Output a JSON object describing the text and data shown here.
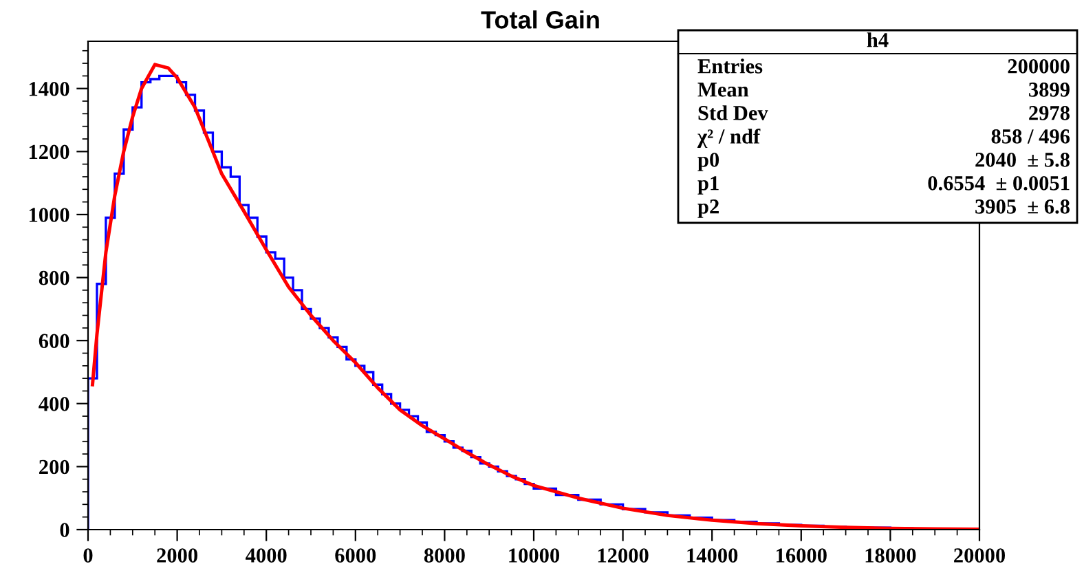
{
  "chart_data": {
    "type": "histogram",
    "title": "Total Gain",
    "bins": [
      0,
      200,
      400,
      600,
      800,
      1000,
      1200,
      1400,
      1600,
      1800,
      2000,
      2200,
      2400,
      2600,
      2800,
      3000,
      3200,
      3400,
      3600,
      3800,
      4000,
      4200,
      4400,
      4600,
      4800,
      5000,
      5200,
      5400,
      5600,
      5800,
      6000,
      6200,
      6400,
      6600,
      6800,
      7000,
      7200,
      7400,
      7600,
      7800,
      8000,
      8200,
      8400,
      8600,
      8800,
      9000,
      9200,
      9400,
      9600,
      9800,
      10000,
      10500,
      11000,
      11500,
      12000,
      12500,
      13000,
      13500,
      14000,
      14500,
      15000,
      15500,
      16000,
      16500,
      17000,
      17500,
      18000,
      18500,
      19000,
      19500,
      20000
    ],
    "values": [
      480,
      780,
      990,
      1130,
      1270,
      1340,
      1420,
      1430,
      1440,
      1440,
      1420,
      1380,
      1330,
      1260,
      1200,
      1150,
      1120,
      1030,
      990,
      930,
      880,
      860,
      800,
      760,
      700,
      670,
      640,
      610,
      580,
      540,
      520,
      500,
      460,
      430,
      400,
      380,
      360,
      340,
      310,
      300,
      280,
      260,
      250,
      230,
      210,
      200,
      185,
      170,
      160,
      145,
      130,
      110,
      95,
      80,
      65,
      55,
      45,
      38,
      30,
      25,
      20,
      15,
      12,
      9,
      7,
      6,
      4,
      3,
      3,
      2
    ],
    "color": "#0000ff",
    "series": [
      {
        "type": "line",
        "color": "#ff0000",
        "x": [
          100,
          200,
          400,
          600,
          800,
          1000,
          1200,
          1500,
          1800,
          2000,
          2400,
          2800,
          3000,
          3500,
          4000,
          4500,
          5000,
          5500,
          6000,
          6500,
          7000,
          7500,
          8000,
          8500,
          9000,
          9500,
          10000,
          11000,
          12000,
          13000,
          14000,
          15000,
          16000,
          17000,
          18000,
          19000,
          20000
        ],
        "values": [
          460,
          620,
          880,
          1060,
          1200,
          1310,
          1400,
          1476,
          1465,
          1434,
          1340,
          1200,
          1129,
          1010,
          888,
          770,
          680,
          600,
          530,
          450,
          380,
          330,
          288,
          245,
          205,
          170,
          140,
          100,
          68,
          45,
          30,
          19,
          12,
          7,
          4,
          2,
          1
        ]
      }
    ],
    "xlim": [
      0,
      20000
    ],
    "xticks": [
      0,
      2000,
      4000,
      6000,
      8000,
      10000,
      12000,
      14000,
      16000,
      18000,
      20000
    ],
    "ylim": [
      0,
      1550
    ],
    "yticks": [
      0,
      200,
      400,
      600,
      800,
      1000,
      1200,
      1400
    ],
    "grid": false,
    "legend": false,
    "annotations": [
      "h4",
      "Entries",
      "200000",
      "Mean",
      "3899",
      "Std Dev",
      "2978",
      "χ² / ndf",
      "858 / 496",
      "p0",
      "2040  ± 5.8",
      "p1",
      "0.6554  ± 0.0051",
      "p2",
      "3905  ± 6.8"
    ]
  }
}
